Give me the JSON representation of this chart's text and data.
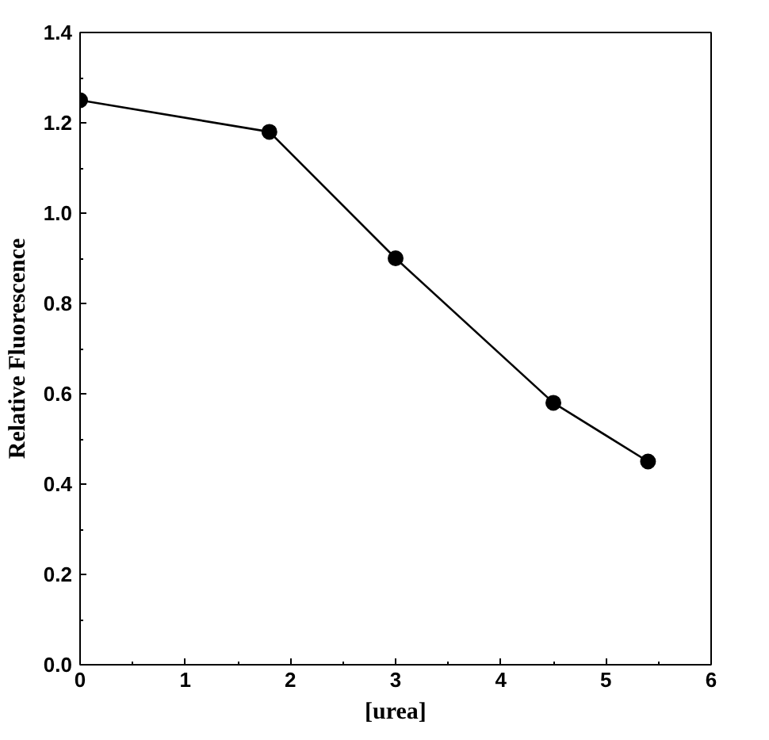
{
  "chart_data": {
    "type": "line",
    "xlabel": "[urea]",
    "ylabel": "Relative Fluorescence",
    "x": [
      0,
      1.8,
      3.0,
      4.5,
      5.4
    ],
    "series": [
      {
        "color": "#000000",
        "values": [
          1.25,
          1.18,
          0.9,
          0.58,
          0.45
        ]
      }
    ],
    "xlim": [
      0,
      6
    ],
    "ylim": [
      0,
      1.4
    ],
    "xticks": [
      0,
      1,
      2,
      3,
      4,
      5,
      6
    ],
    "yticks": [
      {
        "value": 0,
        "label": "0.0"
      },
      0.2,
      0.4,
      0.6,
      0.8,
      {
        "value": 1,
        "label": "1.0"
      },
      1.2,
      1.4
    ],
    "grid": false,
    "marker": "circle",
    "line_style": "solid"
  }
}
